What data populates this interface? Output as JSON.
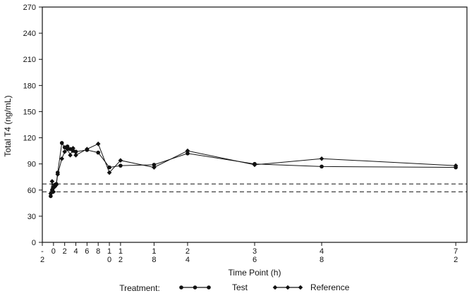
{
  "chart_data": {
    "type": "line",
    "ylabel": "Total T4 (ng/mL)",
    "xlabel": "Time Point (h)",
    "ylim": [
      0,
      270
    ],
    "yticks": [
      0,
      30,
      60,
      90,
      120,
      150,
      180,
      210,
      240,
      270
    ],
    "xlim": [
      -2,
      74
    ],
    "xticks": [
      {
        "value": -2,
        "line1": "-",
        "line2": "2"
      },
      {
        "value": 0,
        "line1": "0",
        "line2": ""
      },
      {
        "value": 2,
        "line1": "2",
        "line2": ""
      },
      {
        "value": 4,
        "line1": "4",
        "line2": ""
      },
      {
        "value": 6,
        "line1": "6",
        "line2": ""
      },
      {
        "value": 8,
        "line1": "8",
        "line2": ""
      },
      {
        "value": 10,
        "line1": "1",
        "line2": "0"
      },
      {
        "value": 12,
        "line1": "1",
        "line2": "2"
      },
      {
        "value": 18,
        "line1": "1",
        "line2": "8"
      },
      {
        "value": 24,
        "line1": "2",
        "line2": "4"
      },
      {
        "value": 36,
        "line1": "3",
        "line2": "6"
      },
      {
        "value": 48,
        "line1": "4",
        "line2": "8"
      },
      {
        "value": 72,
        "line1": "7",
        "line2": "2"
      }
    ],
    "reference_lines": [
      {
        "y": 67,
        "style": "dashed"
      },
      {
        "y": 58,
        "style": "dashed"
      }
    ],
    "legend_title": "Treatment:",
    "legend_position": "bottom",
    "series": [
      {
        "name": "Test",
        "marker": "circle",
        "color": "#111111",
        "points": [
          [
            -0.5,
            53
          ],
          [
            -0.25,
            60
          ],
          [
            0,
            63
          ],
          [
            0.25,
            66
          ],
          [
            0.5,
            67
          ],
          [
            0.75,
            80
          ],
          [
            1.5,
            114
          ],
          [
            2,
            109
          ],
          [
            2.5,
            110
          ],
          [
            3,
            107
          ],
          [
            3.5,
            105
          ],
          [
            4,
            104
          ],
          [
            6,
            106
          ],
          [
            8,
            103
          ],
          [
            10,
            86
          ],
          [
            12,
            88
          ],
          [
            18,
            89
          ],
          [
            24,
            102
          ],
          [
            36,
            90
          ],
          [
            48,
            87
          ],
          [
            72,
            86
          ]
        ]
      },
      {
        "name": "Reference",
        "marker": "diamond",
        "color": "#111111",
        "points": [
          [
            -0.5,
            56
          ],
          [
            -0.25,
            70
          ],
          [
            0,
            58
          ],
          [
            0.25,
            64
          ],
          [
            0.5,
            66
          ],
          [
            0.75,
            78
          ],
          [
            1.5,
            96
          ],
          [
            2,
            104
          ],
          [
            2.5,
            107
          ],
          [
            3,
            100
          ],
          [
            3.5,
            108
          ],
          [
            4,
            100
          ],
          [
            6,
            107
          ],
          [
            8,
            113
          ],
          [
            10,
            80
          ],
          [
            12,
            94
          ],
          [
            18,
            86
          ],
          [
            24,
            105
          ],
          [
            36,
            89
          ],
          [
            48,
            96
          ],
          [
            72,
            88
          ]
        ]
      }
    ]
  }
}
